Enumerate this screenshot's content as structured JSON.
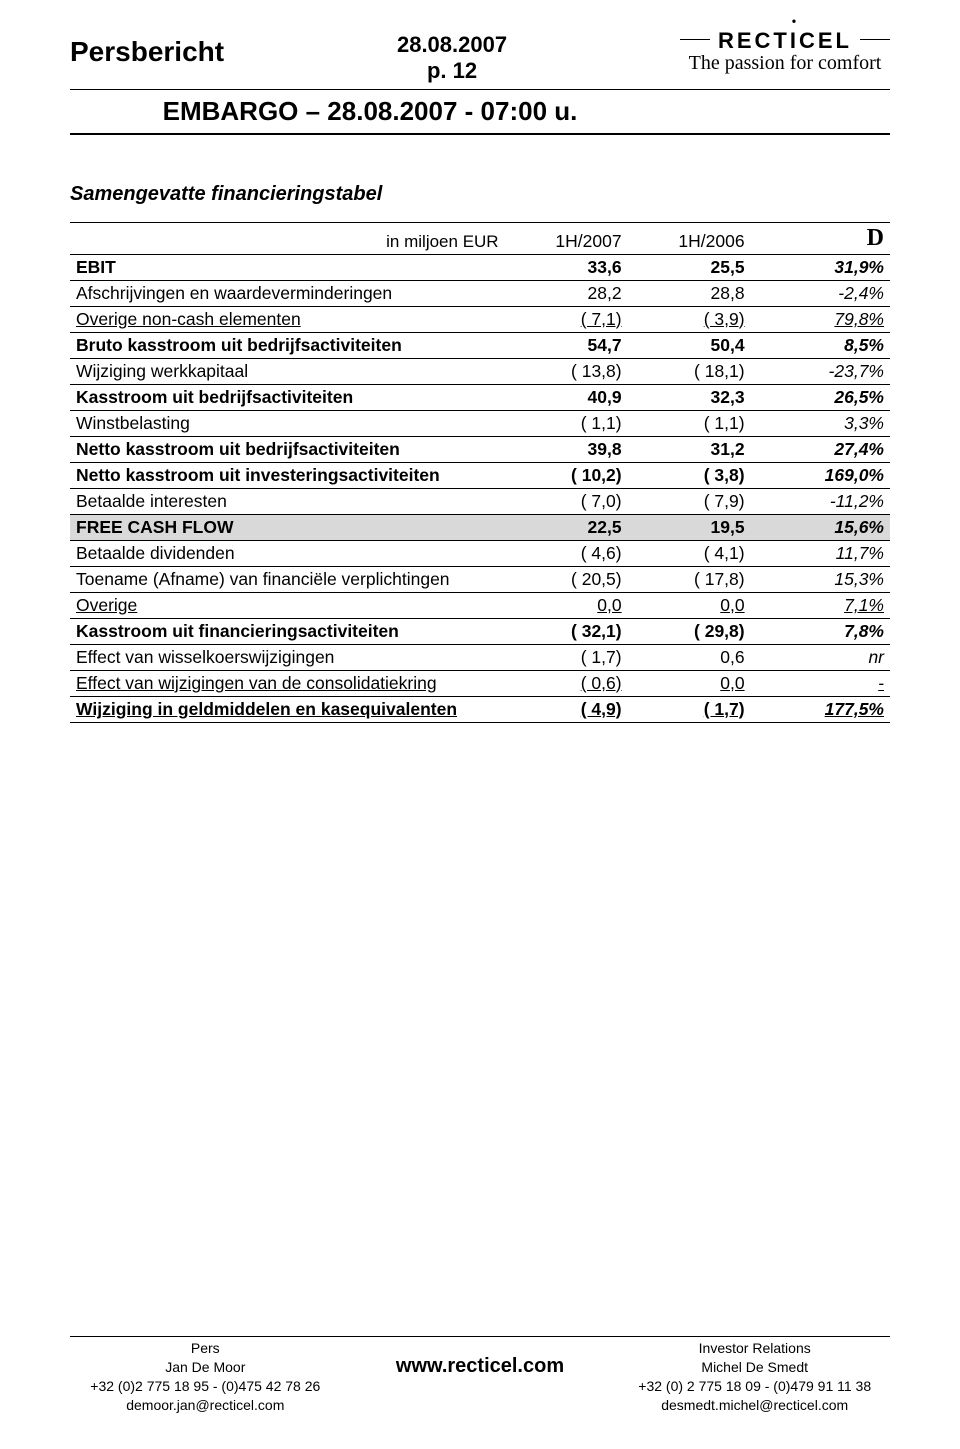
{
  "header": {
    "title_left": "Persbericht",
    "date": "28.08.2007",
    "page_label": "p. 12",
    "brand_prefix": "RECT",
    "brand_suffix": "CEL",
    "tagline": "The passion for comfort",
    "embargo": "EMBARGO – 28.08.2007 - 07:00 u."
  },
  "section_title": "Samengevatte financieringstabel",
  "table": {
    "unit_label": "in miljoen EUR",
    "col1": "1H/2007",
    "col2": "1H/2006",
    "col3": "D",
    "rows": [
      {
        "label": "EBIT",
        "c1": "33,6",
        "c2": "25,5",
        "c3": "31,9%",
        "style": "bold"
      },
      {
        "label": "Afschrijvingen en waardeverminderingen",
        "c1": "28,2",
        "c2": "28,8",
        "c3": "-2,4%",
        "style": ""
      },
      {
        "label": "Overige non-cash elementen",
        "c1": "( 7,1)",
        "c2": "( 3,9)",
        "c3": "79,8%",
        "style": "under"
      },
      {
        "label": "Bruto kasstroom uit bedrijfsactiviteiten",
        "c1": "54,7",
        "c2": "50,4",
        "c3": "8,5%",
        "style": "bold"
      },
      {
        "label": "Wijziging werkkapitaal",
        "c1": "( 13,8)",
        "c2": "( 18,1)",
        "c3": "-23,7%",
        "style": ""
      },
      {
        "label": "Kasstroom uit bedrijfsactiviteiten",
        "c1": "40,9",
        "c2": "32,3",
        "c3": "26,5%",
        "style": "bold"
      },
      {
        "label": "Winstbelasting",
        "c1": "( 1,1)",
        "c2": "( 1,1)",
        "c3": "3,3%",
        "style": ""
      },
      {
        "label": "Netto kasstroom uit bedrijfsactiviteiten",
        "c1": "39,8",
        "c2": "31,2",
        "c3": "27,4%",
        "style": "bold"
      },
      {
        "label": "Netto kasstroom uit investeringsactiviteiten",
        "c1": "( 10,2)",
        "c2": "( 3,8)",
        "c3": "169,0%",
        "style": "bold"
      },
      {
        "label": "Betaalde interesten",
        "c1": "( 7,0)",
        "c2": "( 7,9)",
        "c3": "-11,2%",
        "style": ""
      },
      {
        "label": "FREE CASH FLOW",
        "c1": "22,5",
        "c2": "19,5",
        "c3": "15,6%",
        "style": "shaded"
      },
      {
        "label": "Betaalde dividenden",
        "c1": "( 4,6)",
        "c2": "( 4,1)",
        "c3": "11,7%",
        "style": ""
      },
      {
        "label": "Toename (Afname) van financiële verplichtingen",
        "c1": "( 20,5)",
        "c2": "( 17,8)",
        "c3": "15,3%",
        "style": ""
      },
      {
        "label": "Overige",
        "c1": "0,0",
        "c2": "0,0",
        "c3": "7,1%",
        "style": "under"
      },
      {
        "label": "Kasstroom uit financieringsactiviteiten",
        "c1": "( 32,1)",
        "c2": "( 29,8)",
        "c3": "7,8%",
        "style": "bold"
      },
      {
        "label": "Effect van wisselkoerswijzigingen",
        "c1": "( 1,7)",
        "c2": "0,6",
        "c3": "nr",
        "style": ""
      },
      {
        "label": "Effect van wijzigingen van de consolidatiekring",
        "c1": "( 0,6)",
        "c2": "0,0",
        "c3": "-",
        "style": "under"
      },
      {
        "label": "Wijziging in geldmiddelen en kasequivalenten",
        "c1": "( 4,9)",
        "c2": "( 1,7)",
        "c3": "177,5%",
        "style": "lastrow"
      }
    ]
  },
  "footer": {
    "left": {
      "l1": "Pers",
      "l2": "Jan De Moor",
      "l3": "+32 (0)2 775 18 95 - (0)475 42 78 26",
      "l4": "demoor.jan@recticel.com"
    },
    "center": "www.recticel.com",
    "right": {
      "l1": "Investor Relations",
      "l2": "Michel De Smedt",
      "l3": "+32 (0) 2 775 18 09 - (0)479 91 11 38",
      "l4": "desmedt.michel@recticel.com"
    }
  }
}
